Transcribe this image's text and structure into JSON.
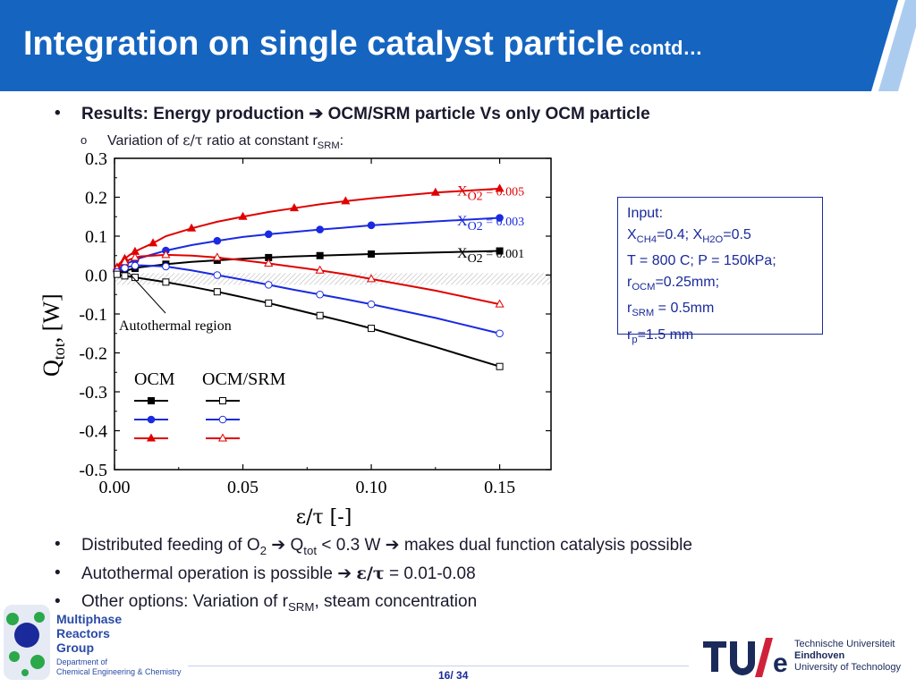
{
  "header": {
    "title": "Integration on single catalyst particle",
    "title_suffix": "contd…",
    "bg_color": "#1565c0"
  },
  "bullets": {
    "main_pre": "Results: Energy production ",
    "main_arrow": "➔",
    "main_post": " OCM/SRM particle Vs only OCM particle",
    "sub_pre": "Variation of ",
    "sub_greek": "ε/τ",
    "sub_mid": " ratio at constant r",
    "sub_sub": "SRM",
    "sub_post": ":"
  },
  "input_box": {
    "title": "Input:",
    "line1_a": "X",
    "line1_a_sub": "CH4",
    "line1_b": "=0.4; X",
    "line1_b_sub": "H2O",
    "line1_c": "=0.5",
    "line2": "T = 800 C; P = 150kPa;",
    "line3_a": "r",
    "line3_sub": "OCM",
    "line3_b": "=0.25mm;",
    "line4_a": "r",
    "line4_sub": "SRM",
    "line4_b": " = 0.5mm",
    "line5_a": "r",
    "line5_sub": "p",
    "line5_b": "=1.5 mm"
  },
  "bottom": {
    "b1_a": "Distributed feeding of O",
    "b1_sub": "2",
    "b1_b": " ➔ Q",
    "b1_sub2": "tot",
    "b1_c": " < 0.3 W ➔ makes dual function catalysis possible",
    "b2_a": "Autothermal operation is possible ➔ ",
    "b2_greek": "ε/τ",
    "b2_b": " = 0.01-0.08",
    "b3_a": "Other options: Variation of r",
    "b3_sub": "SRM",
    "b3_b": ", steam concentration"
  },
  "footer": {
    "mrg_line1": "Multiphase",
    "mrg_line2": "Reactors",
    "mrg_line3": "Group",
    "dept_line1": "Department of",
    "dept_line2": "Chemical Engineering & Chemistry",
    "tue_line1": "Technische Universiteit",
    "tue_line2": "Eindhoven",
    "tue_line3": "University of Technology",
    "page": "16/ 34"
  },
  "chart_data": {
    "type": "line",
    "xlabel": "ε/τ  [-]",
    "ylabel": "Q",
    "ylabel_sub": "tot",
    "ylabel_post": ", [W]",
    "xlim": [
      0,
      0.17
    ],
    "ylim": [
      -0.5,
      0.3
    ],
    "xticks": [
      "0.00",
      "0.05",
      "0.10",
      "0.15"
    ],
    "xtick_values": [
      0,
      0.05,
      0.1,
      0.15
    ],
    "yticks": [
      "0.3",
      "0.2",
      "0.1",
      "0.0",
      "-0.1",
      "-0.2",
      "-0.3",
      "-0.4",
      "-0.5"
    ],
    "ytick_values": [
      0.3,
      0.2,
      0.1,
      0.0,
      -0.1,
      -0.2,
      -0.3,
      -0.4,
      -0.5
    ],
    "autothermal_band": [
      -0.025,
      0.005
    ],
    "autothermal_label": "Autothermal region",
    "legend_headers": [
      "OCM",
      "OCM/SRM"
    ],
    "annotations": [
      {
        "prefix": "X",
        "sub": "O2",
        "text": " = 0.005",
        "color": "#e00000"
      },
      {
        "prefix": "X",
        "sub": "O2",
        "text": " = 0.003",
        "color": "#1a2ae0"
      },
      {
        "prefix": "X",
        "sub": "O2",
        "text": " = 0.001",
        "color": "#000000"
      }
    ],
    "series": [
      {
        "model": "OCM",
        "xo2": "0.005",
        "color": "#e00000",
        "marker": "triangle",
        "filled": true,
        "x": [
          0.001,
          0.002,
          0.004,
          0.006,
          0.008,
          0.01,
          0.015,
          0.02,
          0.03,
          0.04,
          0.05,
          0.06,
          0.07,
          0.08,
          0.09,
          0.1,
          0.125,
          0.15
        ],
        "y": [
          0.02,
          0.03,
          0.042,
          0.052,
          0.06,
          0.067,
          0.082,
          0.1,
          0.12,
          0.137,
          0.15,
          0.162,
          0.172,
          0.182,
          0.19,
          0.197,
          0.212,
          0.222
        ]
      },
      {
        "model": "OCM",
        "xo2": "0.003",
        "color": "#1a2ae0",
        "marker": "circle",
        "filled": true,
        "x": [
          0.001,
          0.002,
          0.004,
          0.006,
          0.008,
          0.01,
          0.02,
          0.03,
          0.04,
          0.05,
          0.06,
          0.07,
          0.08,
          0.09,
          0.1,
          0.125,
          0.15
        ],
        "y": [
          0.012,
          0.018,
          0.027,
          0.033,
          0.038,
          0.044,
          0.063,
          0.077,
          0.088,
          0.098,
          0.105,
          0.111,
          0.117,
          0.122,
          0.128,
          0.138,
          0.147
        ]
      },
      {
        "model": "OCM",
        "xo2": "0.001",
        "color": "#000000",
        "marker": "square",
        "filled": true,
        "x": [
          0.001,
          0.002,
          0.004,
          0.006,
          0.008,
          0.01,
          0.02,
          0.03,
          0.04,
          0.05,
          0.06,
          0.07,
          0.08,
          0.09,
          0.1,
          0.125,
          0.15
        ],
        "y": [
          0.004,
          0.007,
          0.011,
          0.014,
          0.017,
          0.02,
          0.028,
          0.034,
          0.038,
          0.042,
          0.045,
          0.048,
          0.05,
          0.052,
          0.054,
          0.058,
          0.062
        ]
      },
      {
        "model": "OCM/SRM",
        "xo2": "0.005",
        "color": "#e00000",
        "marker": "triangle",
        "filled": false,
        "x": [
          0.001,
          0.002,
          0.004,
          0.006,
          0.008,
          0.01,
          0.02,
          0.03,
          0.04,
          0.05,
          0.06,
          0.07,
          0.08,
          0.09,
          0.1,
          0.125,
          0.15
        ],
        "y": [
          0.016,
          0.024,
          0.034,
          0.04,
          0.045,
          0.048,
          0.052,
          0.05,
          0.045,
          0.038,
          0.03,
          0.021,
          0.012,
          0.002,
          -0.01,
          -0.04,
          -0.075
        ]
      },
      {
        "model": "OCM/SRM",
        "xo2": "0.003",
        "color": "#1a2ae0",
        "marker": "circle",
        "filled": false,
        "x": [
          0.001,
          0.002,
          0.004,
          0.006,
          0.008,
          0.01,
          0.02,
          0.03,
          0.04,
          0.05,
          0.06,
          0.07,
          0.08,
          0.09,
          0.1,
          0.125,
          0.15
        ],
        "y": [
          0.008,
          0.012,
          0.018,
          0.022,
          0.024,
          0.025,
          0.022,
          0.012,
          0.0,
          -0.012,
          -0.025,
          -0.038,
          -0.05,
          -0.062,
          -0.075,
          -0.11,
          -0.15
        ]
      },
      {
        "model": "OCM/SRM",
        "xo2": "0.001",
        "color": "#000000",
        "marker": "square",
        "filled": false,
        "x": [
          0.001,
          0.002,
          0.004,
          0.006,
          0.008,
          0.01,
          0.02,
          0.03,
          0.04,
          0.05,
          0.06,
          0.07,
          0.08,
          0.09,
          0.1,
          0.125,
          0.15
        ],
        "y": [
          0.002,
          0.0,
          -0.002,
          -0.004,
          -0.006,
          -0.008,
          -0.018,
          -0.03,
          -0.043,
          -0.057,
          -0.072,
          -0.088,
          -0.104,
          -0.12,
          -0.137,
          -0.185,
          -0.235
        ]
      }
    ]
  }
}
